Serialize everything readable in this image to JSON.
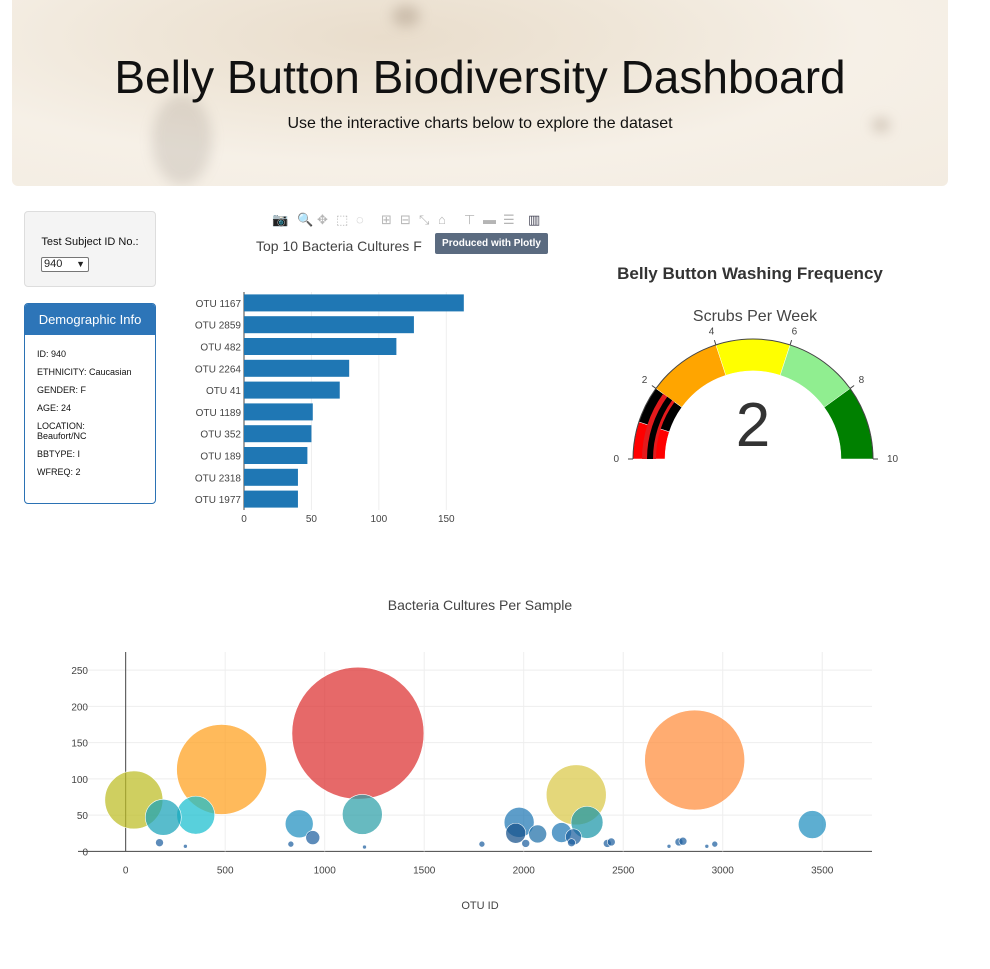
{
  "header": {
    "title": "Belly Button Biodiversity Dashboard",
    "subtitle": "Use the interactive charts below to explore the dataset"
  },
  "selector": {
    "label": "Test Subject ID No.:",
    "value": "940"
  },
  "demographics": {
    "title": "Demographic Info",
    "rows": [
      "ID: 940",
      "ETHNICITY: Caucasian",
      "GENDER: F",
      "AGE: 24",
      "LOCATION: Beaufort/NC",
      "BBTYPE: I",
      "WFREQ: 2"
    ]
  },
  "plotly_toolbar": {
    "icons": [
      "camera-icon",
      "zoom-icon",
      "pan-icon",
      "box-select-icon",
      "lasso-icon",
      "zoom-in-icon",
      "zoom-out-icon",
      "autoscale-icon",
      "home-icon",
      "spike-icon",
      "hover-closest-icon",
      "hover-compare-icon",
      "plotly-logo-icon"
    ],
    "tooltip": "Produced with Plotly"
  },
  "colors": {
    "bar": "#1f77b4",
    "demo_header": "#2d75b8",
    "gauge": [
      "red",
      "black",
      "orange",
      "yellow",
      "lightgreen",
      "green"
    ]
  },
  "chart_data": [
    {
      "type": "bar",
      "title": "Top 10 Bacteria Cultures F",
      "orientation": "horizontal",
      "categories": [
        "OTU 1167",
        "OTU 2859",
        "OTU 482",
        "OTU 2264",
        "OTU 41",
        "OTU 1189",
        "OTU 352",
        "OTU 189",
        "OTU 2318",
        "OTU 1977"
      ],
      "values": [
        163,
        126,
        113,
        78,
        71,
        51,
        50,
        47,
        40,
        40
      ],
      "xlim": [
        0,
        175
      ],
      "xticks": [
        0,
        50,
        100,
        150
      ],
      "grid": true
    },
    {
      "type": "gauge",
      "title": "Belly Button Washing Frequency",
      "subtitle": "Scrubs Per Week",
      "value": 2,
      "range": [
        0,
        10
      ],
      "ticks": [
        0,
        2,
        4,
        6,
        8,
        10
      ],
      "steps": [
        {
          "range": [
            0,
            1
          ],
          "color": "red"
        },
        {
          "range": [
            1,
            2
          ],
          "color": "black"
        },
        {
          "range": [
            2,
            4
          ],
          "color": "orange"
        },
        {
          "range": [
            4,
            6
          ],
          "color": "yellow"
        },
        {
          "range": [
            6,
            8
          ],
          "color": "lightgreen"
        },
        {
          "range": [
            8,
            10
          ],
          "color": "green"
        }
      ]
    },
    {
      "type": "scatter",
      "title": "Bacteria Cultures Per Sample",
      "xlabel": "OTU ID",
      "ylabel": "",
      "xlim": [
        -330,
        3750
      ],
      "ylim": [
        -5,
        275
      ],
      "xticks": [
        0,
        500,
        1000,
        1500,
        2000,
        2500,
        3000,
        3500
      ],
      "yticks": [
        0,
        50,
        100,
        150,
        200,
        250
      ],
      "grid": true,
      "points": [
        {
          "x": 41,
          "y": 71,
          "r": 29,
          "color": "#bcbd22"
        },
        {
          "x": 189,
          "y": 47,
          "r": 18,
          "color": "#17a2b8"
        },
        {
          "x": 352,
          "y": 50,
          "r": 19,
          "color": "#17becf"
        },
        {
          "x": 482,
          "y": 113,
          "r": 45,
          "color": "#ff9f1c"
        },
        {
          "x": 872,
          "y": 38,
          "r": 14,
          "color": "#1f8fbf"
        },
        {
          "x": 940,
          "y": 19,
          "r": 7,
          "color": "#1f5fa0"
        },
        {
          "x": 1167,
          "y": 163,
          "r": 66,
          "color": "#dc2f2f"
        },
        {
          "x": 1189,
          "y": 51,
          "r": 20,
          "color": "#2ca0a8"
        },
        {
          "x": 1977,
          "y": 40,
          "r": 15,
          "color": "#1f77b4"
        },
        {
          "x": 1960,
          "y": 25,
          "r": 10,
          "color": "#15508a"
        },
        {
          "x": 2070,
          "y": 24,
          "r": 9,
          "color": "#1e6fa8"
        },
        {
          "x": 2264,
          "y": 78,
          "r": 30,
          "color": "#d9c846"
        },
        {
          "x": 2318,
          "y": 40,
          "r": 16,
          "color": "#1a96a8"
        },
        {
          "x": 2190,
          "y": 26,
          "r": 10,
          "color": "#1f77b4"
        },
        {
          "x": 2250,
          "y": 20,
          "r": 8,
          "color": "#1d5f9e"
        },
        {
          "x": 2859,
          "y": 126,
          "r": 50,
          "color": "#ff8c3a"
        },
        {
          "x": 3450,
          "y": 37,
          "r": 14,
          "color": "#1f8fbf"
        },
        {
          "x": 170,
          "y": 12,
          "r": 4,
          "color": "#1f5fa0"
        },
        {
          "x": 300,
          "y": 7,
          "r": 2,
          "color": "#1f5fa0"
        },
        {
          "x": 830,
          "y": 10,
          "r": 3,
          "color": "#1f5fa0"
        },
        {
          "x": 1200,
          "y": 6,
          "r": 2,
          "color": "#1f5fa0"
        },
        {
          "x": 1790,
          "y": 10,
          "r": 3,
          "color": "#1f5fa0"
        },
        {
          "x": 2010,
          "y": 11,
          "r": 4,
          "color": "#1f5fa0"
        },
        {
          "x": 2240,
          "y": 12,
          "r": 4,
          "color": "#1f5fa0"
        },
        {
          "x": 2420,
          "y": 11,
          "r": 4,
          "color": "#1f5fa0"
        },
        {
          "x": 2440,
          "y": 13,
          "r": 4,
          "color": "#1f5fa0"
        },
        {
          "x": 2780,
          "y": 13,
          "r": 4,
          "color": "#1f5fa0"
        },
        {
          "x": 2800,
          "y": 14,
          "r": 4,
          "color": "#1f5fa0"
        },
        {
          "x": 2730,
          "y": 7,
          "r": 2,
          "color": "#1f5fa0"
        },
        {
          "x": 2920,
          "y": 7,
          "r": 2,
          "color": "#1f5fa0"
        },
        {
          "x": 2960,
          "y": 10,
          "r": 3,
          "color": "#1f5fa0"
        }
      ]
    }
  ]
}
